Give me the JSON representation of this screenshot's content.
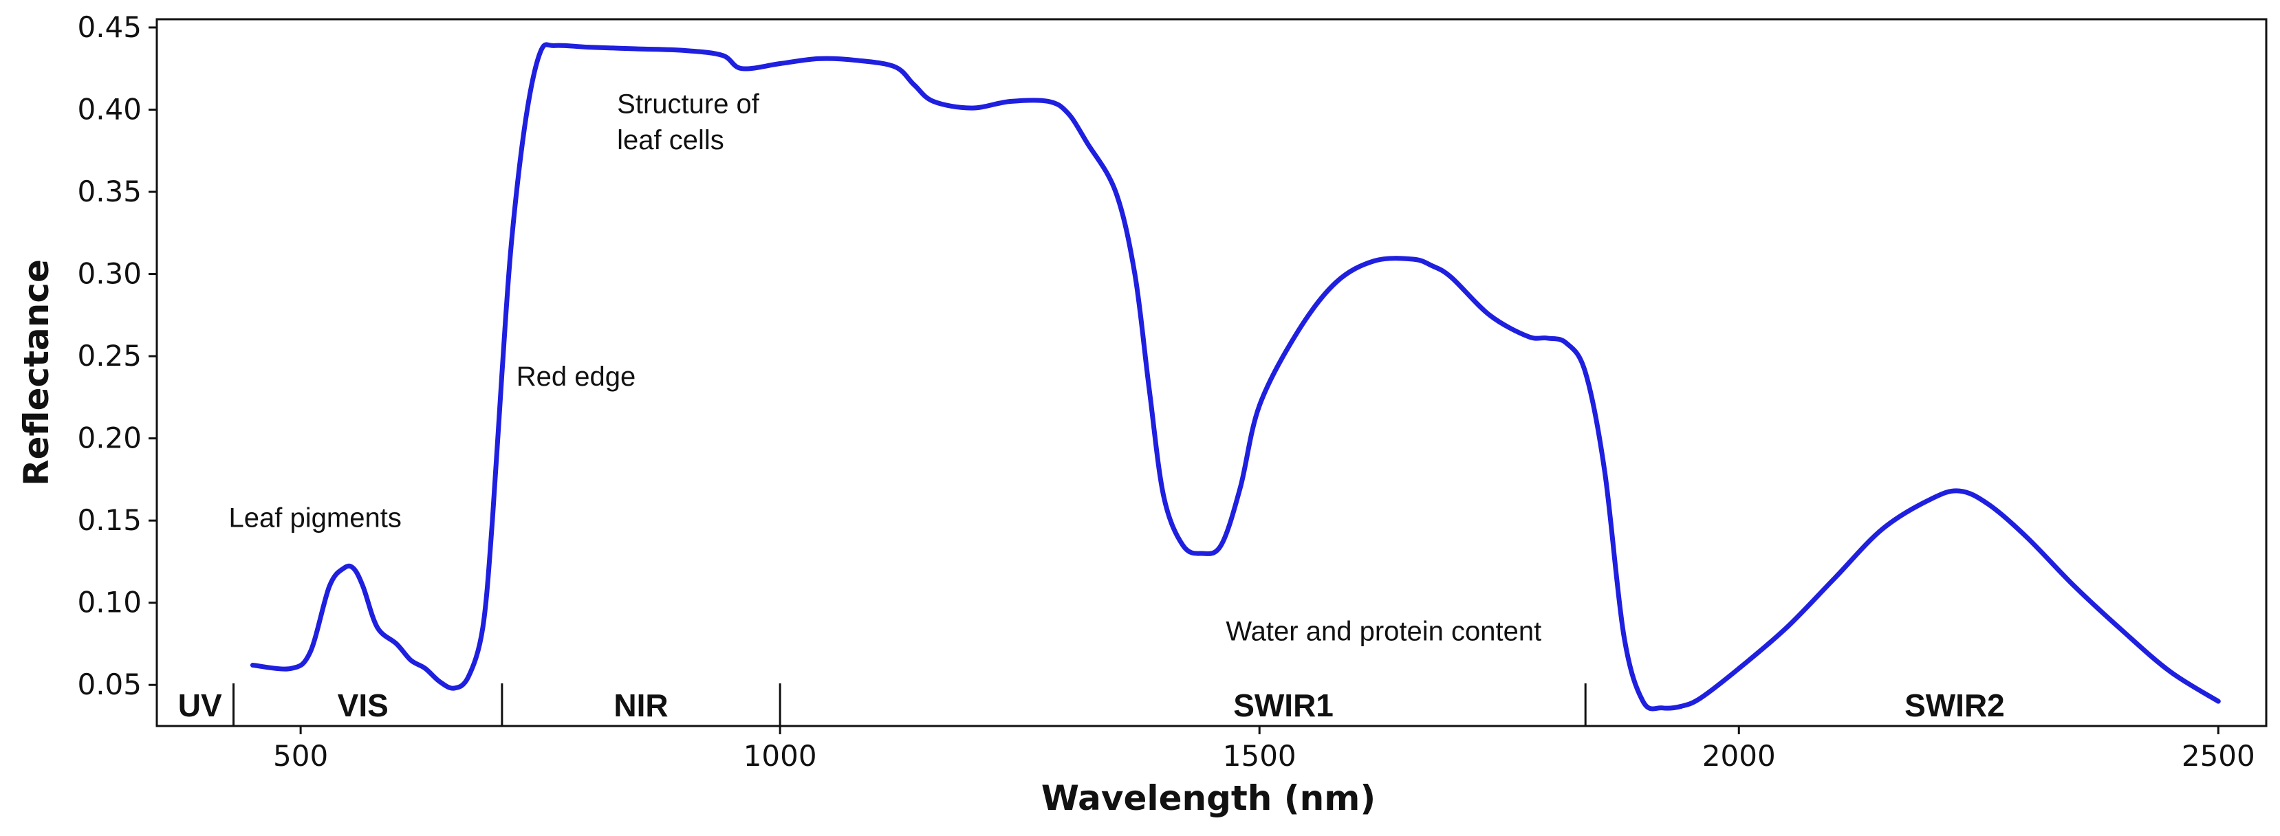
{
  "chart_data": {
    "type": "line",
    "title": "",
    "xlabel": "Wavelength (nm)",
    "ylabel": "Reflectance",
    "xlim": [
      350,
      2550
    ],
    "ylim": [
      0.025,
      0.455
    ],
    "xticks": [
      500,
      1000,
      1500,
      2000,
      2500
    ],
    "yticks": [
      0.05,
      0.1,
      0.15,
      0.2,
      0.25,
      0.3,
      0.35,
      0.4,
      0.45
    ],
    "grid": false,
    "legend": "none",
    "line_color": "#1f1fe0",
    "series": [
      {
        "x": [
          450,
          490,
          510,
          530,
          545,
          555,
          565,
          580,
          600,
          615,
          630,
          645,
          660,
          675,
          690,
          700,
          710,
          720,
          735,
          750,
          765,
          800,
          850,
          900,
          940,
          960,
          1000,
          1040,
          1080,
          1120,
          1140,
          1160,
          1200,
          1240,
          1280,
          1300,
          1320,
          1350,
          1370,
          1385,
          1400,
          1420,
          1440,
          1460,
          1480,
          1500,
          1540,
          1580,
          1620,
          1660,
          1680,
          1700,
          1740,
          1780,
          1800,
          1820,
          1840,
          1860,
          1880,
          1900,
          1920,
          1940,
          1960,
          2000,
          2050,
          2100,
          2150,
          2200,
          2230,
          2260,
          2300,
          2350,
          2400,
          2450,
          2500
        ],
        "values": [
          0.062,
          0.06,
          0.07,
          0.11,
          0.121,
          0.121,
          0.11,
          0.085,
          0.075,
          0.065,
          0.06,
          0.052,
          0.048,
          0.055,
          0.085,
          0.15,
          0.24,
          0.32,
          0.395,
          0.435,
          0.439,
          0.438,
          0.437,
          0.436,
          0.433,
          0.425,
          0.428,
          0.431,
          0.43,
          0.426,
          0.415,
          0.405,
          0.401,
          0.405,
          0.405,
          0.398,
          0.38,
          0.35,
          0.3,
          0.23,
          0.165,
          0.135,
          0.13,
          0.135,
          0.17,
          0.22,
          0.265,
          0.295,
          0.308,
          0.309,
          0.305,
          0.298,
          0.275,
          0.262,
          0.261,
          0.258,
          0.24,
          0.18,
          0.08,
          0.04,
          0.036,
          0.037,
          0.042,
          0.06,
          0.085,
          0.115,
          0.145,
          0.163,
          0.168,
          0.16,
          0.14,
          0.11,
          0.083,
          0.058,
          0.04
        ]
      }
    ],
    "annotations": [
      {
        "text": "Leaf pigments",
        "x": 425,
        "y": 0.146
      },
      {
        "text": "Red edge",
        "x": 725,
        "y": 0.232
      },
      {
        "text": "Structure of",
        "x": 830,
        "y": 0.398
      },
      {
        "text": "leaf cells",
        "x": 830,
        "y": 0.376
      },
      {
        "text": "Water and protein content",
        "x": 1465,
        "y": 0.077
      }
    ],
    "bands": [
      {
        "label": "UV",
        "center": 395
      },
      {
        "label": "VIS",
        "center": 565
      },
      {
        "label": "NIR",
        "center": 855
      },
      {
        "label": "SWIR1",
        "center": 1525
      },
      {
        "label": "SWIR2",
        "center": 2225
      }
    ],
    "band_dividers": [
      430,
      710,
      1000,
      1840
    ]
  }
}
